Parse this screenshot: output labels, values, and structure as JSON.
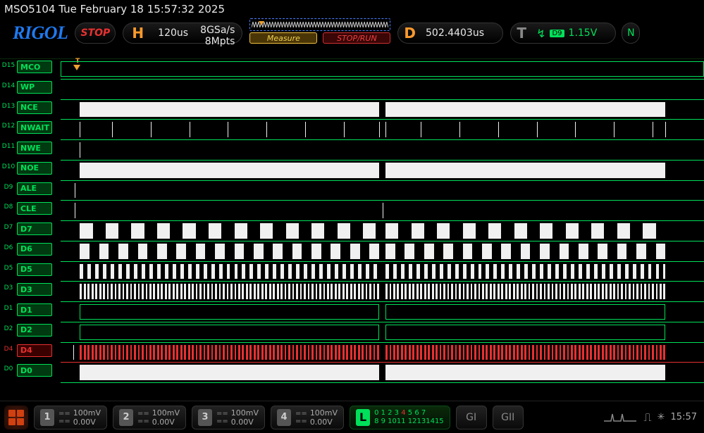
{
  "title": "MSO5104  Tue February 18 15:57:32 2025",
  "brand": "RIGOL",
  "status": "STOP",
  "timebase": {
    "label": "H",
    "value": "120us",
    "rate1": "8GSa/s",
    "rate2": "8Mpts"
  },
  "preview": {
    "measure": "Measure",
    "stoprun": "STOP/RUN"
  },
  "delay": {
    "label": "D",
    "value": "502.4403us"
  },
  "trigger": {
    "label": "T",
    "level": "1.15V",
    "src": "D9",
    "n": "N"
  },
  "channels": [
    {
      "num": "D15",
      "name": "MCO",
      "style": "frame",
      "segs": [
        [
          0,
          100
        ]
      ],
      "trig": true,
      "trigpos": 2
    },
    {
      "num": "D14",
      "name": "WP",
      "style": "line",
      "segs": []
    },
    {
      "num": "D13",
      "name": "NCE",
      "style": "solid",
      "segs": [
        [
          3,
          49.5
        ],
        [
          50.5,
          94
        ]
      ]
    },
    {
      "num": "D12",
      "name": "NWAIT",
      "style": "ticks",
      "ticks": [
        3,
        8,
        14,
        20,
        26,
        32,
        38,
        44,
        49.5,
        50.5,
        56,
        62,
        68,
        74,
        80,
        86,
        92,
        94
      ]
    },
    {
      "num": "D11",
      "name": "NWE",
      "style": "ticks",
      "ticks": [
        3
      ]
    },
    {
      "num": "D10",
      "name": "NOE",
      "style": "solid",
      "segs": [
        [
          3,
          49.5
        ],
        [
          50.5,
          94
        ]
      ]
    },
    {
      "num": "D9",
      "name": "ALE",
      "style": "ticks",
      "ticks": [
        2.2
      ]
    },
    {
      "num": "D8",
      "name": "CLE",
      "style": "ticks",
      "ticks": [
        2.2,
        50
      ]
    },
    {
      "num": "D7",
      "name": "D7",
      "style": "dense",
      "period": 4,
      "duty": 0.5,
      "start": 3,
      "gap": [
        49.5,
        50.5
      ],
      "end": 94
    },
    {
      "num": "D6",
      "name": "D6",
      "style": "dense",
      "period": 3,
      "duty": 0.5,
      "start": 3,
      "gap": [
        49.5,
        50.5
      ],
      "end": 94
    },
    {
      "num": "D5",
      "name": "D5",
      "style": "dense",
      "period": 1.2,
      "duty": 0.45,
      "start": 3,
      "gap": [
        49.5,
        50.5
      ],
      "end": 94
    },
    {
      "num": "D3",
      "name": "D3",
      "style": "dense",
      "period": 0.6,
      "duty": 0.5,
      "start": 3,
      "gap": [
        49.5,
        50.5
      ],
      "end": 94
    },
    {
      "num": "D1",
      "name": "D1",
      "style": "frame",
      "segs": [
        [
          3,
          49.5
        ],
        [
          50.5,
          94
        ]
      ]
    },
    {
      "num": "D2",
      "name": "D2",
      "style": "frame",
      "segs": [
        [
          3,
          49.5
        ],
        [
          50.5,
          94
        ]
      ]
    },
    {
      "num": "D4",
      "name": "D4",
      "style": "densered",
      "period": 0.6,
      "duty": 0.5,
      "start": 3,
      "gap": [
        49.5,
        50.5
      ],
      "end": 94,
      "red": true
    },
    {
      "num": "D0",
      "name": "D0",
      "style": "solid",
      "segs": [
        [
          3,
          49.5
        ],
        [
          50.5,
          94
        ]
      ]
    }
  ],
  "analog": [
    {
      "n": "1",
      "scale": "100mV",
      "offset": "0.00V"
    },
    {
      "n": "2",
      "scale": "100mV",
      "offset": "0.00V"
    },
    {
      "n": "3",
      "scale": "100mV",
      "offset": "0.00V"
    },
    {
      "n": "4",
      "scale": "100mV",
      "offset": "0.00V"
    }
  ],
  "logic_bits_top": "0 1 2 3 4 5 6 7",
  "logic_bits_bot": "8 9 1011 12131415",
  "g1": "GI",
  "g2": "GII",
  "clock": "15:57"
}
